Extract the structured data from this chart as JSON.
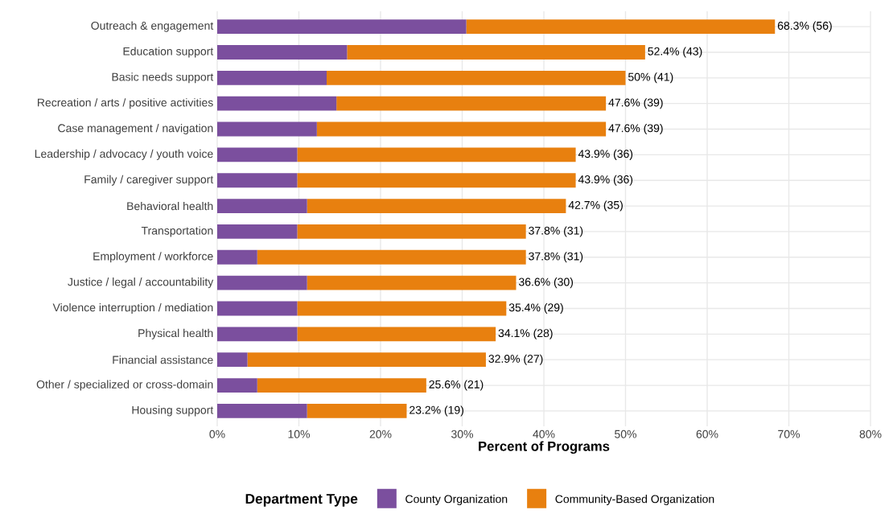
{
  "chart_data": {
    "type": "bar",
    "orientation": "horizontal",
    "stacked": true,
    "xlabel": "Percent of Programs",
    "legend_title": "Department Type",
    "categories": [
      "Outreach & engagement",
      "Education support",
      "Basic needs support",
      "Recreation / arts / positive activities",
      "Case management / navigation",
      "Leadership / advocacy / youth voice",
      "Family / caregiver support",
      "Behavioral health",
      "Transportation",
      "Employment / workforce",
      "Justice / legal / accountability",
      "Violence interruption / mediation",
      "Physical health",
      "Financial assistance",
      "Other / specialized or cross-domain",
      "Housing support"
    ],
    "series": [
      {
        "name": "County Organization",
        "color": "#7b4f9e",
        "values": [
          30.5,
          15.9,
          13.4,
          14.6,
          12.2,
          9.8,
          9.8,
          11.0,
          9.8,
          4.9,
          11.0,
          9.8,
          9.8,
          3.7,
          4.9,
          11.0
        ]
      },
      {
        "name": "Community-Based Organization",
        "color": "#e8800f",
        "values": [
          37.8,
          36.5,
          36.6,
          33.0,
          35.4,
          34.1,
          34.1,
          31.7,
          28.0,
          32.9,
          25.6,
          25.6,
          24.3,
          29.2,
          20.7,
          12.2
        ]
      }
    ],
    "totals": [
      "68.3% (56)",
      "52.4% (43)",
      "50% (41)",
      "47.6% (39)",
      "47.6% (39)",
      "43.9% (36)",
      "43.9% (36)",
      "42.7% (35)",
      "37.8% (31)",
      "37.8% (31)",
      "36.6% (30)",
      "35.4% (29)",
      "34.1% (28)",
      "32.9% (27)",
      "25.6% (21)",
      "23.2% (19)"
    ],
    "xlim": [
      0,
      80
    ],
    "xticks": [
      {
        "value": 0,
        "label": "0%"
      },
      {
        "value": 10,
        "label": "10%"
      },
      {
        "value": 20,
        "label": "20%"
      },
      {
        "value": 30,
        "label": "30%"
      },
      {
        "value": 40,
        "label": "40%"
      },
      {
        "value": 50,
        "label": "50%"
      },
      {
        "value": 60,
        "label": "60%"
      },
      {
        "value": 70,
        "label": "70%"
      },
      {
        "value": 80,
        "label": "80%"
      }
    ],
    "grid": true,
    "legend": "bottom"
  }
}
